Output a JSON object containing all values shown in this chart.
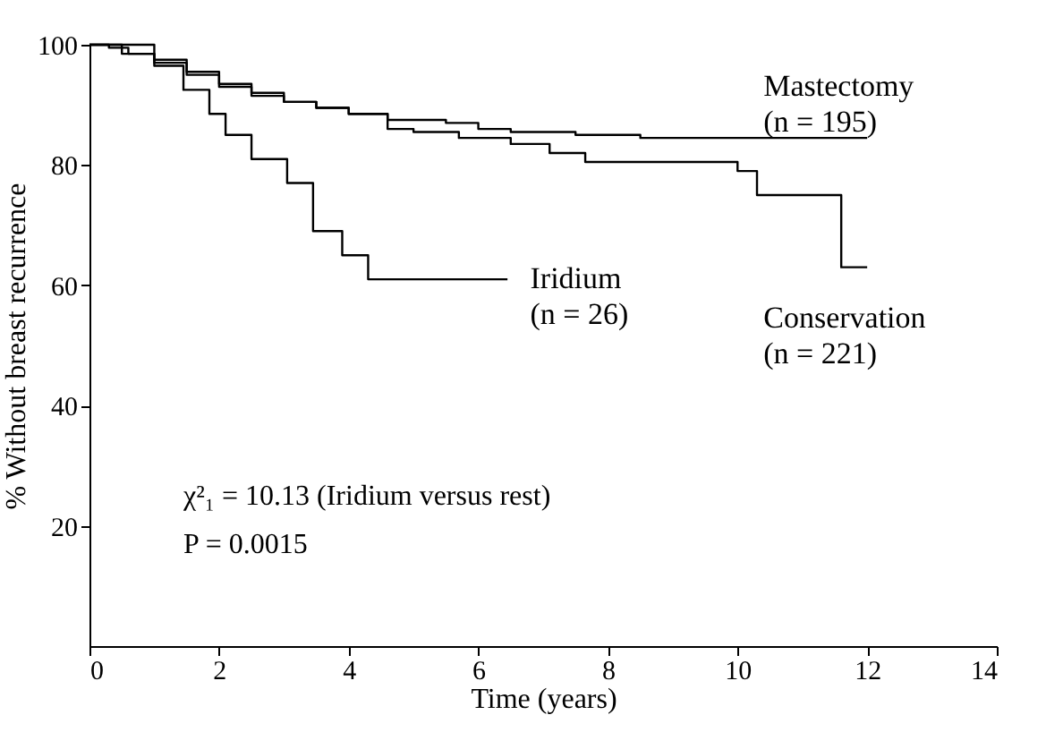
{
  "chart_data": {
    "type": "step",
    "xlabel": "Time (years)",
    "ylabel": "% Without breast recurrence",
    "xlim": [
      0,
      14
    ],
    "xticks": [
      0,
      2,
      4,
      6,
      8,
      10,
      12,
      14
    ],
    "ylim": [
      0,
      100
    ],
    "yticks": [
      20,
      40,
      60,
      80,
      100
    ],
    "grid": false,
    "line_style": "solid",
    "annotations": [
      "χ²₁ = 10.13 (Iridium versus rest)",
      "P = 0.0015"
    ],
    "series": [
      {
        "name": "Mastectomy (n = 195)",
        "color": "#000000",
        "x": [
          0,
          0.3,
          0.6,
          1,
          1.5,
          2,
          2.5,
          3,
          3.5,
          4,
          4.6,
          5.5,
          6,
          6.5,
          7.5,
          8.5,
          12
        ],
        "values": [
          100,
          99.5,
          98.5,
          97.5,
          95.5,
          93.5,
          92,
          90.5,
          89.5,
          88.5,
          87.5,
          87,
          86,
          85.5,
          85,
          84.5,
          84.5
        ]
      },
      {
        "name": "Iridium (n = 26)",
        "color": "#000000",
        "x": [
          0,
          1,
          1.45,
          1.85,
          2.1,
          2.5,
          3.05,
          3.45,
          3.9,
          4.3,
          6.45
        ],
        "values": [
          100,
          96.5,
          92.5,
          88.5,
          85,
          81,
          77,
          69,
          65,
          61,
          61
        ]
      },
      {
        "name": "Conservation (n = 221)",
        "color": "#000000",
        "x": [
          0,
          0.5,
          1,
          1.5,
          2,
          2.5,
          3,
          3.5,
          4,
          4.6,
          5,
          5.7,
          6.5,
          7.1,
          7.65,
          10,
          10.3,
          11.6,
          12
        ],
        "values": [
          100,
          98.5,
          97,
          95,
          93,
          91.5,
          90.5,
          89.5,
          88.5,
          86,
          85.5,
          84.5,
          83.5,
          82,
          80.5,
          79,
          75,
          63,
          63
        ]
      }
    ]
  }
}
